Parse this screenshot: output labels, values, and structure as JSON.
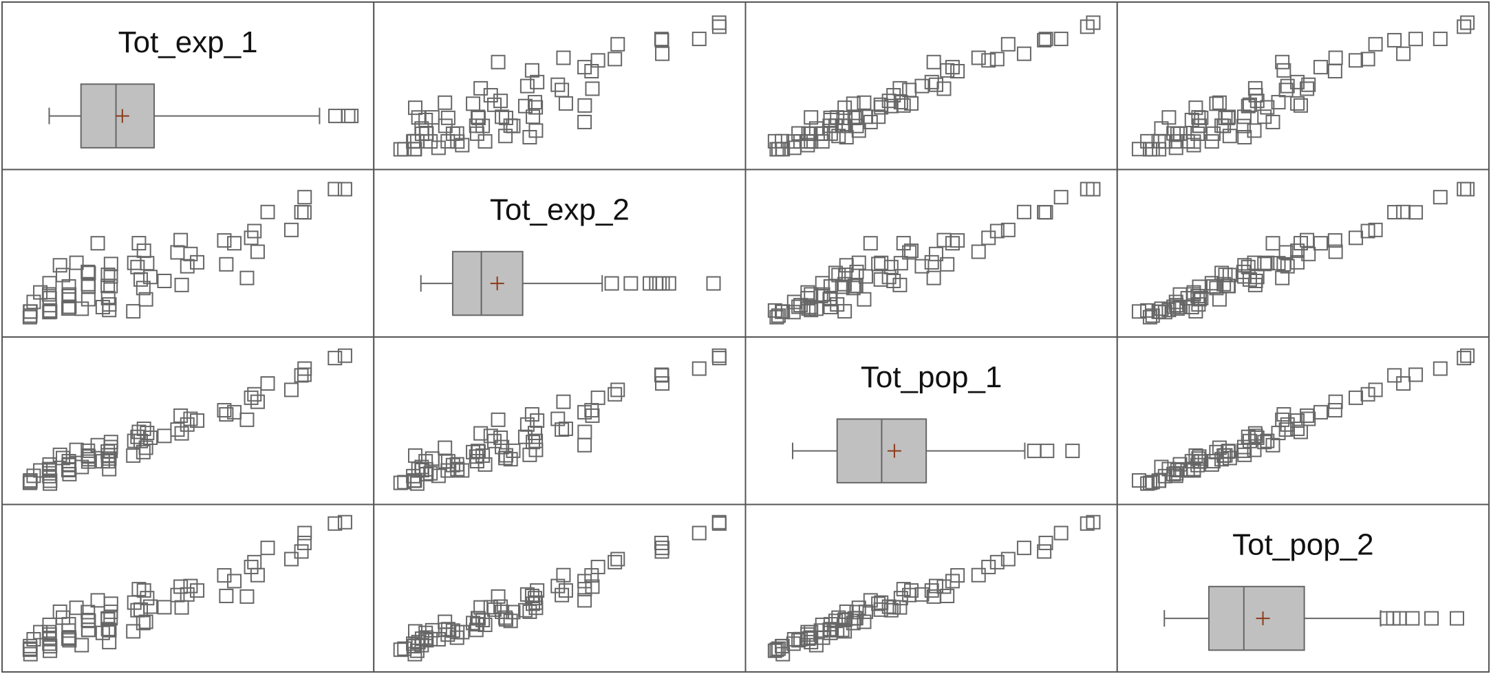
{
  "chart_data": {
    "type": "scatter-matrix",
    "variables": [
      "Tot_exp_1",
      "Tot_exp_2",
      "Tot_pop_1",
      "Tot_pop_2"
    ],
    "diagonal": "boxplot",
    "marker": "open-square",
    "colors": {
      "marker": "#666666",
      "box_fill": "#c0c0c0",
      "mean_marker": "#8b3a1a",
      "frame": "#555555"
    },
    "boxplots": [
      {
        "variable": "Tot_exp_1",
        "whisker_low": 0.04,
        "q1": 0.14,
        "median": 0.25,
        "mean": 0.27,
        "q3": 0.37,
        "whisker_high": 0.89,
        "outliers": [
          0.94,
          0.98,
          0.99
        ]
      },
      {
        "variable": "Tot_exp_2",
        "whisker_low": 0.04,
        "q1": 0.14,
        "median": 0.23,
        "mean": 0.28,
        "q3": 0.36,
        "whisker_high": 0.61,
        "outliers": [
          0.64,
          0.7,
          0.76,
          0.78,
          0.79,
          0.8,
          0.82,
          0.96
        ]
      },
      {
        "variable": "Tot_pop_1",
        "whisker_low": 0.04,
        "q1": 0.18,
        "median": 0.32,
        "mean": 0.36,
        "q3": 0.46,
        "whisker_high": 0.77,
        "outliers": [
          0.8,
          0.84,
          0.92
        ]
      },
      {
        "variable": "Tot_pop_2",
        "whisker_low": 0.04,
        "q1": 0.18,
        "median": 0.29,
        "mean": 0.35,
        "q3": 0.48,
        "whisker_high": 0.72,
        "outliers": [
          0.74,
          0.76,
          0.78,
          0.82,
          0.88,
          0.96
        ]
      }
    ],
    "observations": [
      {
        "x": 0.99,
        "y": 0.99
      },
      {
        "x": 0.95,
        "y": 0.98
      },
      {
        "x": 0.85,
        "y": 0.8
      },
      {
        "x": 0.84,
        "y": 0.9
      },
      {
        "x": 0.82,
        "y": 0.78
      },
      {
        "x": 0.78,
        "y": 0.7
      },
      {
        "x": 0.76,
        "y": 0.82
      },
      {
        "x": 0.72,
        "y": 0.52
      },
      {
        "x": 0.7,
        "y": 0.66
      },
      {
        "x": 0.68,
        "y": 0.6
      },
      {
        "x": 0.62,
        "y": 0.55
      },
      {
        "x": 0.58,
        "y": 0.62
      },
      {
        "x": 0.55,
        "y": 0.45
      },
      {
        "x": 0.52,
        "y": 0.5
      },
      {
        "x": 0.5,
        "y": 0.4
      },
      {
        "x": 0.47,
        "y": 0.58
      },
      {
        "x": 0.45,
        "y": 0.48
      },
      {
        "x": 0.42,
        "y": 0.35
      },
      {
        "x": 0.4,
        "y": 0.44
      },
      {
        "x": 0.38,
        "y": 0.52
      },
      {
        "x": 0.36,
        "y": 0.3
      },
      {
        "x": 0.34,
        "y": 0.38
      },
      {
        "x": 0.32,
        "y": 0.46
      },
      {
        "x": 0.3,
        "y": 0.28
      },
      {
        "x": 0.29,
        "y": 0.34
      },
      {
        "x": 0.28,
        "y": 0.42
      },
      {
        "x": 0.26,
        "y": 0.25
      },
      {
        "x": 0.25,
        "y": 0.32
      },
      {
        "x": 0.24,
        "y": 0.2
      },
      {
        "x": 0.23,
        "y": 0.38
      },
      {
        "x": 0.22,
        "y": 0.28
      },
      {
        "x": 0.21,
        "y": 0.16
      },
      {
        "x": 0.2,
        "y": 0.24
      },
      {
        "x": 0.19,
        "y": 0.33
      },
      {
        "x": 0.18,
        "y": 0.12
      },
      {
        "x": 0.17,
        "y": 0.2
      },
      {
        "x": 0.16,
        "y": 0.26
      },
      {
        "x": 0.15,
        "y": 0.1
      },
      {
        "x": 0.14,
        "y": 0.18
      },
      {
        "x": 0.13,
        "y": 0.14
      },
      {
        "x": 0.12,
        "y": 0.22
      },
      {
        "x": 0.11,
        "y": 0.08
      },
      {
        "x": 0.1,
        "y": 0.12
      },
      {
        "x": 0.09,
        "y": 0.16
      },
      {
        "x": 0.08,
        "y": 0.06
      },
      {
        "x": 0.07,
        "y": 0.1
      },
      {
        "x": 0.06,
        "y": 0.05
      },
      {
        "x": 0.05,
        "y": 0.08
      },
      {
        "x": 0.04,
        "y": 0.04
      },
      {
        "x": 0.03,
        "y": 0.06
      },
      {
        "x": 0.35,
        "y": 0.22
      },
      {
        "x": 0.3,
        "y": 0.15
      },
      {
        "x": 0.27,
        "y": 0.12
      },
      {
        "x": 0.44,
        "y": 0.3
      },
      {
        "x": 0.48,
        "y": 0.26
      },
      {
        "x": 0.6,
        "y": 0.4
      },
      {
        "x": 0.65,
        "y": 0.35
      },
      {
        "x": 0.2,
        "y": 0.45
      },
      {
        "x": 0.15,
        "y": 0.35
      },
      {
        "x": 0.1,
        "y": 0.28
      },
      {
        "x": 0.12,
        "y": 0.4
      },
      {
        "x": 0.22,
        "y": 0.55
      },
      {
        "x": 0.33,
        "y": 0.6
      },
      {
        "x": 0.4,
        "y": 0.18
      },
      {
        "x": 0.08,
        "y": 0.22
      },
      {
        "x": 0.05,
        "y": 0.14
      },
      {
        "x": 0.18,
        "y": 0.08
      },
      {
        "x": 0.25,
        "y": 0.06
      },
      {
        "x": 0.37,
        "y": 0.1
      }
    ]
  }
}
